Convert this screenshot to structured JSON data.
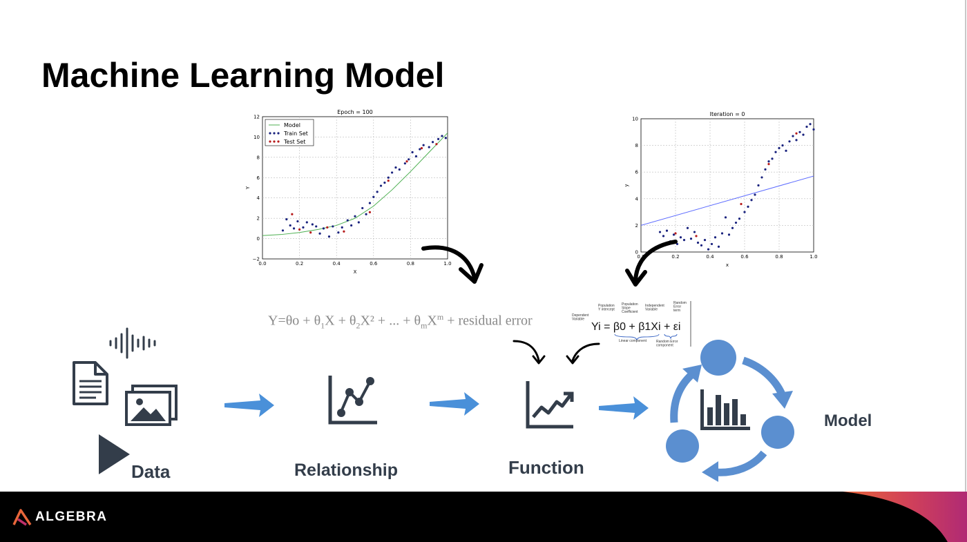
{
  "slide": {
    "title": "Machine Learning Model"
  },
  "flow": {
    "labels": {
      "data": "Data",
      "relationship": "Relationship",
      "function": "Function",
      "model": "Model"
    },
    "icons": [
      "audio-waveform-icon",
      "document-icon",
      "image-gallery-icon",
      "play-icon",
      "right-arrow-icon",
      "scatter-line-icon",
      "trend-chart-icon",
      "model-cycle-icon",
      "curved-arrow-icon"
    ],
    "colors": {
      "icon": "#333d4a",
      "arrow": "#4a90d9",
      "cycle": "#5b8fd0"
    }
  },
  "formula": {
    "parts": [
      "Y=θo + θ",
      "1",
      "X + θ",
      "2",
      "X² + ... + θ",
      "m",
      "X",
      "m",
      " + residual error"
    ]
  },
  "regression_formula": {
    "dependent_variable": "Dependent Variable",
    "population_intercept": "Population Y intercept",
    "population_slope": "Population Slope Coefficient",
    "independent_variable": "Independent Variable",
    "random_error": "Random Error term",
    "equation": "Yi = β0 + β1Xi + εi",
    "linear_component": "Linear component",
    "random_error_component": "Random Error component"
  },
  "chart_data": [
    {
      "type": "scatter",
      "title": "Epoch = 100",
      "xlabel": "X",
      "ylabel": "Y",
      "xlim": [
        0.0,
        1.0
      ],
      "ylim": [
        -2,
        12
      ],
      "xticks": [
        "0.0",
        "0.2",
        "0.4",
        "0.6",
        "0.8",
        "1.0"
      ],
      "yticks": [
        "−2",
        "0",
        "2",
        "4",
        "6",
        "8",
        "10",
        "12"
      ],
      "grid": true,
      "legend_position": "top-left",
      "legend": [
        "Model",
        "Train Set",
        "Test Set"
      ],
      "series": [
        {
          "name": "Model",
          "type": "line",
          "color": "#4caf50",
          "x": [
            0,
            0.1,
            0.2,
            0.3,
            0.4,
            0.5,
            0.6,
            0.7,
            0.8,
            0.9,
            1.0
          ],
          "y": [
            0.3,
            0.4,
            0.6,
            0.9,
            1.3,
            2.0,
            3.2,
            4.8,
            6.6,
            8.5,
            10.4
          ]
        },
        {
          "name": "Train Set",
          "type": "scatter",
          "color": "#1a237e",
          "x": [
            0.11,
            0.13,
            0.15,
            0.17,
            0.19,
            0.22,
            0.24,
            0.27,
            0.29,
            0.31,
            0.33,
            0.36,
            0.38,
            0.41,
            0.43,
            0.46,
            0.48,
            0.5,
            0.52,
            0.54,
            0.56,
            0.58,
            0.6,
            0.62,
            0.64,
            0.66,
            0.68,
            0.7,
            0.72,
            0.74,
            0.77,
            0.79,
            0.81,
            0.83,
            0.85,
            0.87,
            0.9,
            0.92,
            0.95,
            0.97,
            0.99
          ],
          "y": [
            0.8,
            1.9,
            1.3,
            1.0,
            1.7,
            1.1,
            1.6,
            1.4,
            1.2,
            0.5,
            1.0,
            0.2,
            1.2,
            0.6,
            1.1,
            1.8,
            1.3,
            2.2,
            1.6,
            3.0,
            2.4,
            3.5,
            4.1,
            4.6,
            5.2,
            5.5,
            6.0,
            6.5,
            7.0,
            6.8,
            7.4,
            7.8,
            8.5,
            8.1,
            8.8,
            9.2,
            9.0,
            9.5,
            9.8,
            10.1,
            9.9
          ]
        },
        {
          "name": "Test Set",
          "type": "scatter",
          "color": "#b71c1c",
          "x": [
            0.16,
            0.2,
            0.26,
            0.35,
            0.44,
            0.58,
            0.68,
            0.78,
            0.86,
            0.94
          ],
          "y": [
            2.4,
            0.9,
            0.6,
            1.1,
            0.7,
            2.6,
            5.7,
            7.6,
            8.9,
            9.3
          ]
        }
      ]
    },
    {
      "type": "scatter",
      "title": "Iteration = 0",
      "xlabel": "x",
      "ylabel": "y",
      "xlim": [
        0.0,
        1.0
      ],
      "ylim": [
        0,
        10
      ],
      "xticks": [
        "0.0",
        "0.2",
        "0.4",
        "0.6",
        "0.8",
        "1.0"
      ],
      "yticks": [
        "0",
        "2",
        "4",
        "6",
        "8",
        "10"
      ],
      "grid": true,
      "series": [
        {
          "name": "",
          "type": "line",
          "color": "#5c6bff",
          "x": [
            0,
            1
          ],
          "y": [
            2.0,
            5.7
          ]
        },
        {
          "name": "",
          "type": "scatter",
          "color": "#1a237e",
          "x": [
            0.11,
            0.13,
            0.15,
            0.17,
            0.19,
            0.21,
            0.23,
            0.25,
            0.27,
            0.29,
            0.31,
            0.33,
            0.35,
            0.37,
            0.39,
            0.41,
            0.43,
            0.45,
            0.47,
            0.49,
            0.51,
            0.53,
            0.55,
            0.57,
            0.6,
            0.62,
            0.64,
            0.66,
            0.68,
            0.7,
            0.72,
            0.74,
            0.76,
            0.78,
            0.8,
            0.82,
            0.84,
            0.86,
            0.88,
            0.9,
            0.92,
            0.94,
            0.96,
            0.98,
            1.0
          ],
          "y": [
            1.5,
            1.2,
            1.6,
            0.8,
            1.3,
            0.6,
            1.1,
            0.9,
            1.8,
            1.0,
            1.5,
            0.7,
            0.5,
            0.9,
            0.2,
            0.6,
            1.1,
            0.4,
            1.4,
            2.6,
            1.3,
            1.8,
            2.2,
            2.5,
            3.0,
            3.4,
            3.9,
            4.3,
            5.0,
            5.6,
            6.2,
            6.8,
            7.0,
            7.5,
            7.8,
            8.0,
            7.6,
            8.3,
            8.7,
            8.4,
            9.0,
            8.8,
            9.4,
            9.6,
            9.2
          ]
        },
        {
          "name": "",
          "type": "scatter",
          "color": "#b71c1c",
          "x": [
            0.2,
            0.32,
            0.58,
            0.74,
            0.9
          ],
          "y": [
            1.4,
            1.2,
            3.6,
            6.6,
            8.9
          ]
        }
      ]
    }
  ],
  "footer": {
    "brand": "ALGEBRA",
    "colors": {
      "background": "#000000",
      "accent_orange": "#e8663a",
      "accent_magenta": "#c0306a"
    }
  }
}
